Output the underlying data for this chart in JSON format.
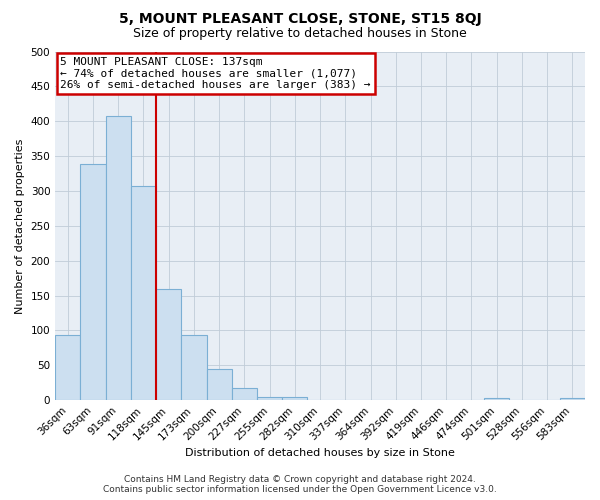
{
  "title": "5, MOUNT PLEASANT CLOSE, STONE, ST15 8QJ",
  "subtitle": "Size of property relative to detached houses in Stone",
  "xlabel": "Distribution of detached houses by size in Stone",
  "ylabel": "Number of detached properties",
  "bar_labels": [
    "36sqm",
    "63sqm",
    "91sqm",
    "118sqm",
    "145sqm",
    "173sqm",
    "200sqm",
    "227sqm",
    "255sqm",
    "282sqm",
    "310sqm",
    "337sqm",
    "364sqm",
    "392sqm",
    "419sqm",
    "446sqm",
    "474sqm",
    "501sqm",
    "528sqm",
    "556sqm",
    "583sqm"
  ],
  "bar_values": [
    93,
    338,
    407,
    307,
    160,
    93,
    45,
    17,
    4,
    4,
    0,
    0,
    0,
    0,
    0,
    0,
    0,
    3,
    0,
    0,
    3
  ],
  "bar_color": "#ccdff0",
  "bar_edge_color": "#7bafd4",
  "vline_color": "#cc0000",
  "vline_position": 3.5,
  "annotation_title": "5 MOUNT PLEASANT CLOSE: 137sqm",
  "annotation_line1": "← 74% of detached houses are smaller (1,077)",
  "annotation_line2": "26% of semi-detached houses are larger (383) →",
  "annotation_box_edge": "#cc0000",
  "ylim": [
    0,
    500
  ],
  "yticks": [
    0,
    50,
    100,
    150,
    200,
    250,
    300,
    350,
    400,
    450,
    500
  ],
  "footer1": "Contains HM Land Registry data © Crown copyright and database right 2024.",
  "footer2": "Contains public sector information licensed under the Open Government Licence v3.0.",
  "plot_bg_color": "#e8eef5",
  "fig_bg_color": "#ffffff",
  "grid_color": "#c0ccd8",
  "title_fontsize": 10,
  "subtitle_fontsize": 9,
  "axis_label_fontsize": 8,
  "tick_fontsize": 7.5,
  "annotation_fontsize": 8,
  "footer_fontsize": 6.5
}
